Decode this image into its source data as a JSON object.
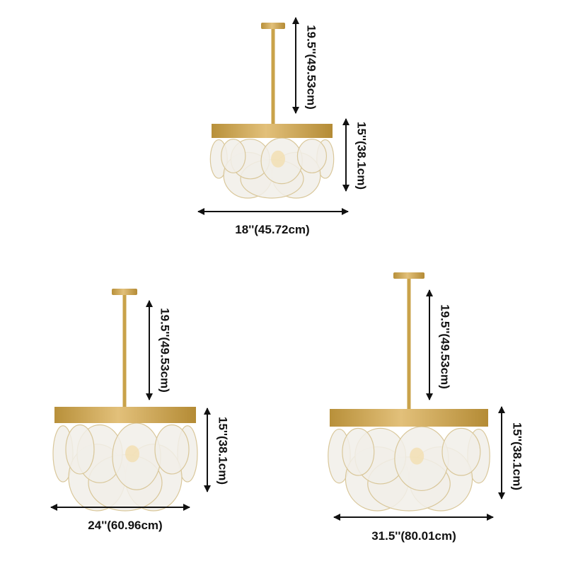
{
  "colors": {
    "brass": "#c9a24a",
    "glass": "#f1efe9",
    "arrow": "#111111"
  },
  "lamps": [
    {
      "height_label": "19.5''(49.53cm)",
      "body_label": "15''(38.1cm)",
      "width_label": "18''(45.72cm)"
    },
    {
      "height_label": "19.5''(49.53cm)",
      "body_label": "15''(38.1cm)",
      "width_label": "24''(60.96cm)"
    },
    {
      "height_label": "19.5''(49.53cm)",
      "body_label": "15''(38.1cm)",
      "width_label": "31.5''(80.01cm)"
    }
  ]
}
